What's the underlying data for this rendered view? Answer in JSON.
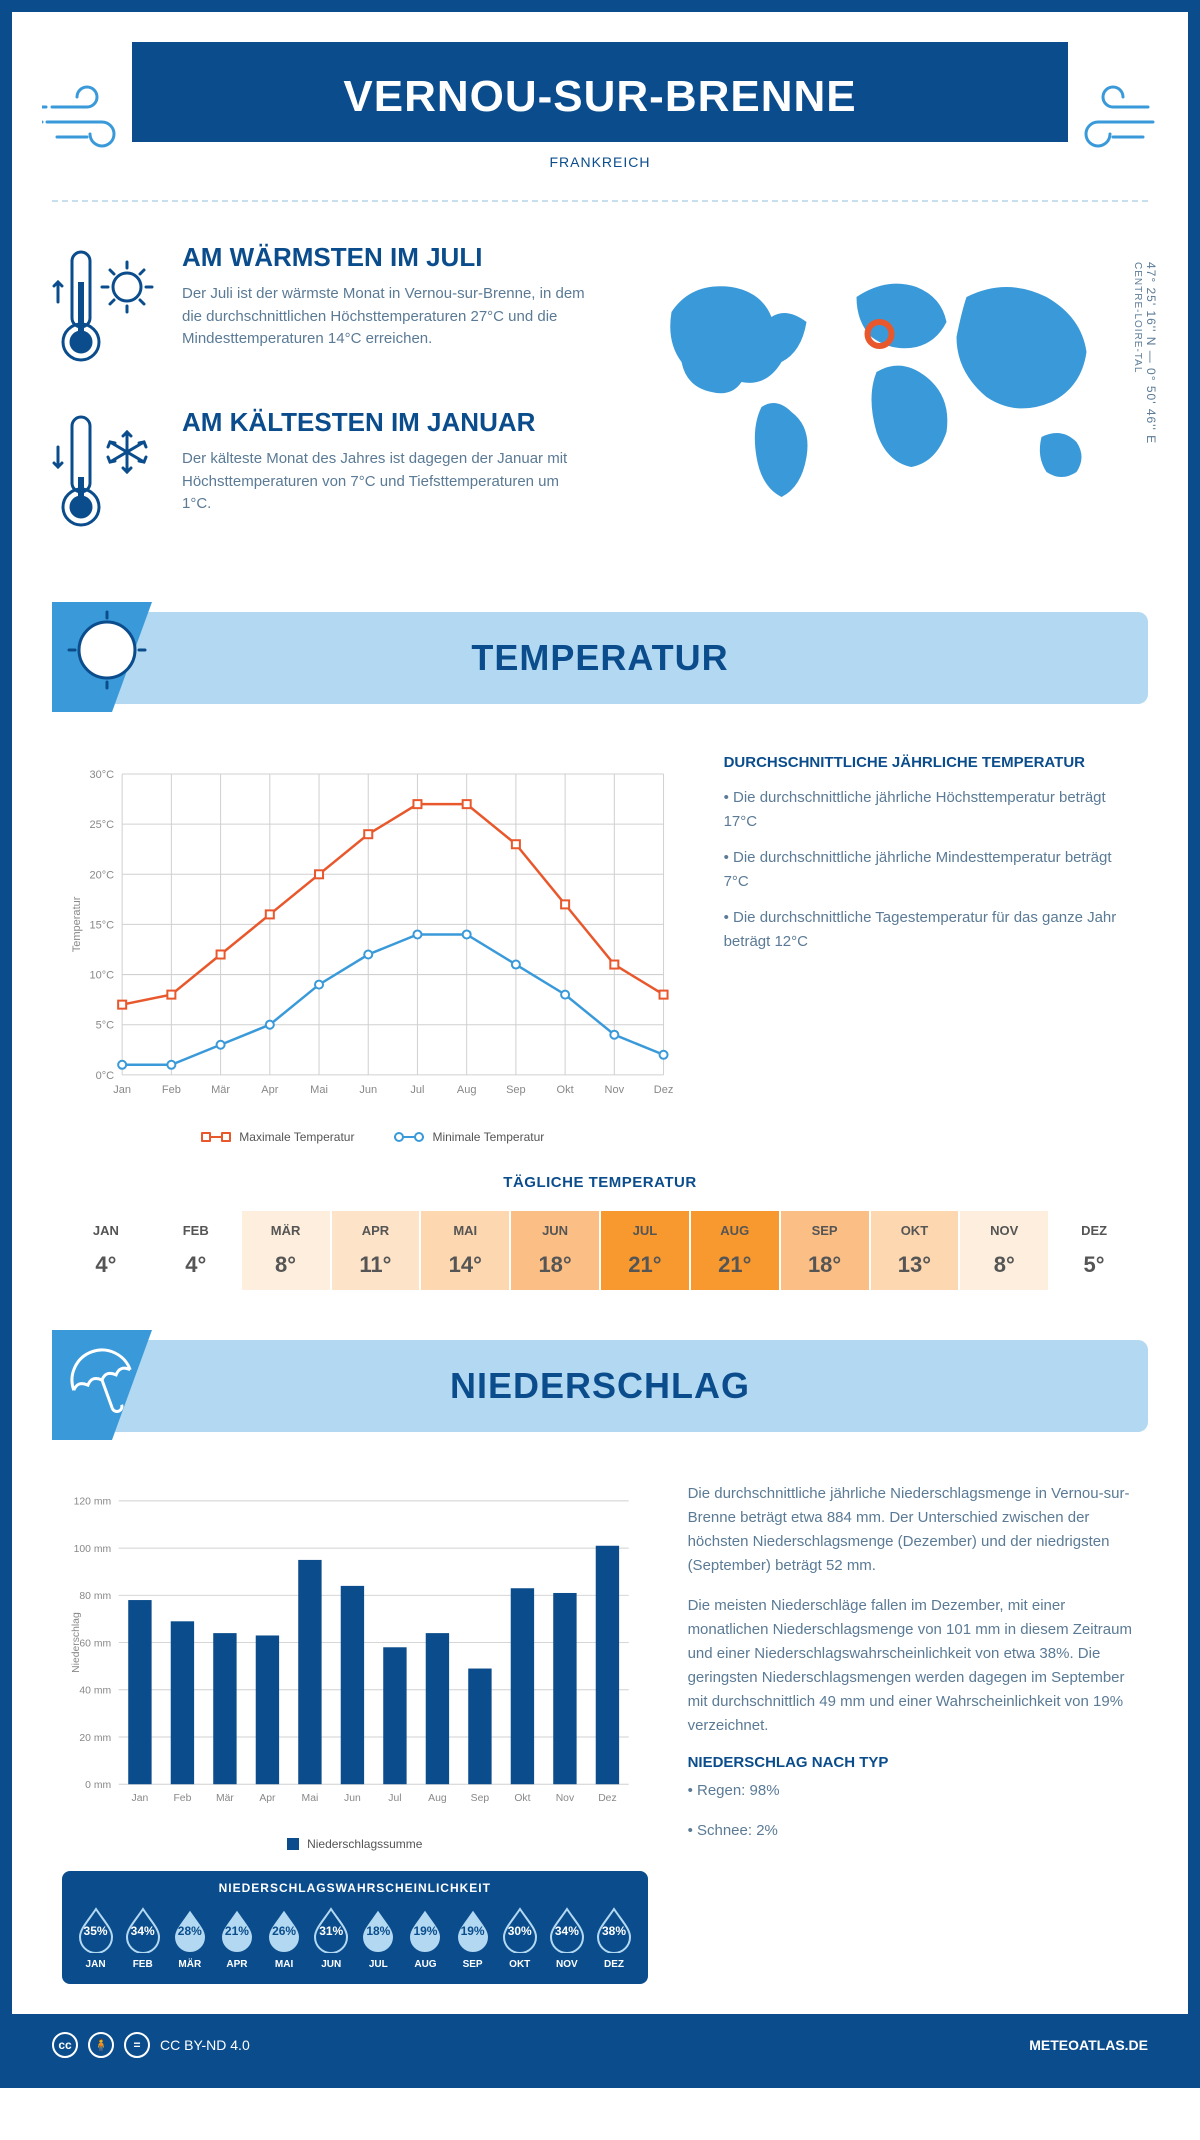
{
  "header": {
    "title": "VERNOU-SUR-BRENNE",
    "country": "FRANKREICH"
  },
  "coords": {
    "lat": "47° 25' 16'' N — 0° 50' 46'' E",
    "region": "CENTRE-LOIRE-TAL"
  },
  "overview": {
    "warm": {
      "title": "AM WÄRMSTEN IM JULI",
      "text": "Der Juli ist der wärmste Monat in Vernou-sur-Brenne, in dem die durchschnittlichen Höchsttemperaturen 27°C und die Mindesttemperaturen 14°C erreichen."
    },
    "cold": {
      "title": "AM KÄLTESTEN IM JANUAR",
      "text": "Der kälteste Monat des Jahres ist dagegen der Januar mit Höchsttemperaturen von 7°C und Tiefsttemperaturen um 1°C."
    }
  },
  "temperature": {
    "banner": "TEMPERATUR",
    "chart": {
      "type": "line",
      "months": [
        "Jan",
        "Feb",
        "Mär",
        "Apr",
        "Mai",
        "Jun",
        "Jul",
        "Aug",
        "Sep",
        "Okt",
        "Nov",
        "Dez"
      ],
      "max": [
        7,
        8,
        12,
        16,
        20,
        24,
        27,
        27,
        23,
        17,
        11,
        8
      ],
      "min": [
        1,
        1,
        3,
        5,
        9,
        12,
        14,
        14,
        11,
        8,
        4,
        2
      ],
      "max_color": "#e8582c",
      "min_color": "#3a9ad9",
      "grid_color": "#d0d0d0",
      "ylim": [
        0,
        30
      ],
      "ytick_step": 5,
      "ylabel": "Temperatur",
      "legend_max": "Maximale Temperatur",
      "legend_min": "Minimale Temperatur"
    },
    "summary": {
      "title": "DURCHSCHNITTLICHE JÄHRLICHE TEMPERATUR",
      "lines": [
        "• Die durchschnittliche jährliche Höchsttemperatur beträgt 17°C",
        "• Die durchschnittliche jährliche Mindesttemperatur beträgt 7°C",
        "• Die durchschnittliche Tagestemperatur für das ganze Jahr beträgt 12°C"
      ]
    },
    "daily": {
      "title": "TÄGLICHE TEMPERATUR",
      "months": [
        "JAN",
        "FEB",
        "MÄR",
        "APR",
        "MAI",
        "JUN",
        "JUL",
        "AUG",
        "SEP",
        "OKT",
        "NOV",
        "DEZ"
      ],
      "values": [
        "4°",
        "4°",
        "8°",
        "11°",
        "14°",
        "18°",
        "21°",
        "21°",
        "18°",
        "13°",
        "8°",
        "5°"
      ],
      "colors": [
        "#ffffff",
        "#ffffff",
        "#fdeedd",
        "#fde3c8",
        "#fcd7b0",
        "#fbbf85",
        "#f7992f",
        "#f7992f",
        "#fbbf85",
        "#fcd7b0",
        "#fdeedd",
        "#ffffff"
      ]
    }
  },
  "precipitation": {
    "banner": "NIEDERSCHLAG",
    "chart": {
      "type": "bar",
      "months": [
        "Jan",
        "Feb",
        "Mär",
        "Apr",
        "Mai",
        "Jun",
        "Jul",
        "Aug",
        "Sep",
        "Okt",
        "Nov",
        "Dez"
      ],
      "values": [
        78,
        69,
        64,
        63,
        95,
        84,
        58,
        64,
        49,
        83,
        81,
        101
      ],
      "bar_color": "#0b4d8c",
      "ylim": [
        0,
        120
      ],
      "ytick_step": 20,
      "ylabel": "Niederschlag",
      "legend": "Niederschlagssumme"
    },
    "text": {
      "p1": "Die durchschnittliche jährliche Niederschlagsmenge in Vernou-sur-Brenne beträgt etwa 884 mm. Der Unterschied zwischen der höchsten Niederschlagsmenge (Dezember) und der niedrigsten (September) beträgt 52 mm.",
      "p2": "Die meisten Niederschläge fallen im Dezember, mit einer monatlichen Niederschlagsmenge von 101 mm in diesem Zeitraum und einer Niederschlagswahrscheinlichkeit von etwa 38%. Die geringsten Niederschlagsmengen werden dagegen im September mit durchschnittlich 49 mm und einer Wahrscheinlichkeit von 19% verzeichnet.",
      "type_title": "NIEDERSCHLAG NACH TYP",
      "type_lines": [
        "• Regen: 98%",
        "• Schnee: 2%"
      ]
    },
    "probability": {
      "title": "NIEDERSCHLAGSWAHRSCHEINLICHKEIT",
      "months": [
        "JAN",
        "FEB",
        "MÄR",
        "APR",
        "MAI",
        "JUN",
        "JUL",
        "AUG",
        "SEP",
        "OKT",
        "NOV",
        "DEZ"
      ],
      "pct": [
        "35%",
        "34%",
        "28%",
        "21%",
        "26%",
        "31%",
        "18%",
        "19%",
        "19%",
        "30%",
        "34%",
        "38%"
      ],
      "values": [
        35,
        34,
        28,
        21,
        26,
        31,
        18,
        19,
        19,
        30,
        34,
        38
      ],
      "drop_dark": "#0b4d8c",
      "drop_light": "#b3d9f2"
    }
  },
  "footer": {
    "license": "CC BY-ND 4.0",
    "site": "METEOATLAS.DE"
  },
  "colors": {
    "primary": "#0b4d8c",
    "light": "#b3d9f2",
    "accent": "#3a9ad9",
    "text_muted": "#5a7a95"
  }
}
